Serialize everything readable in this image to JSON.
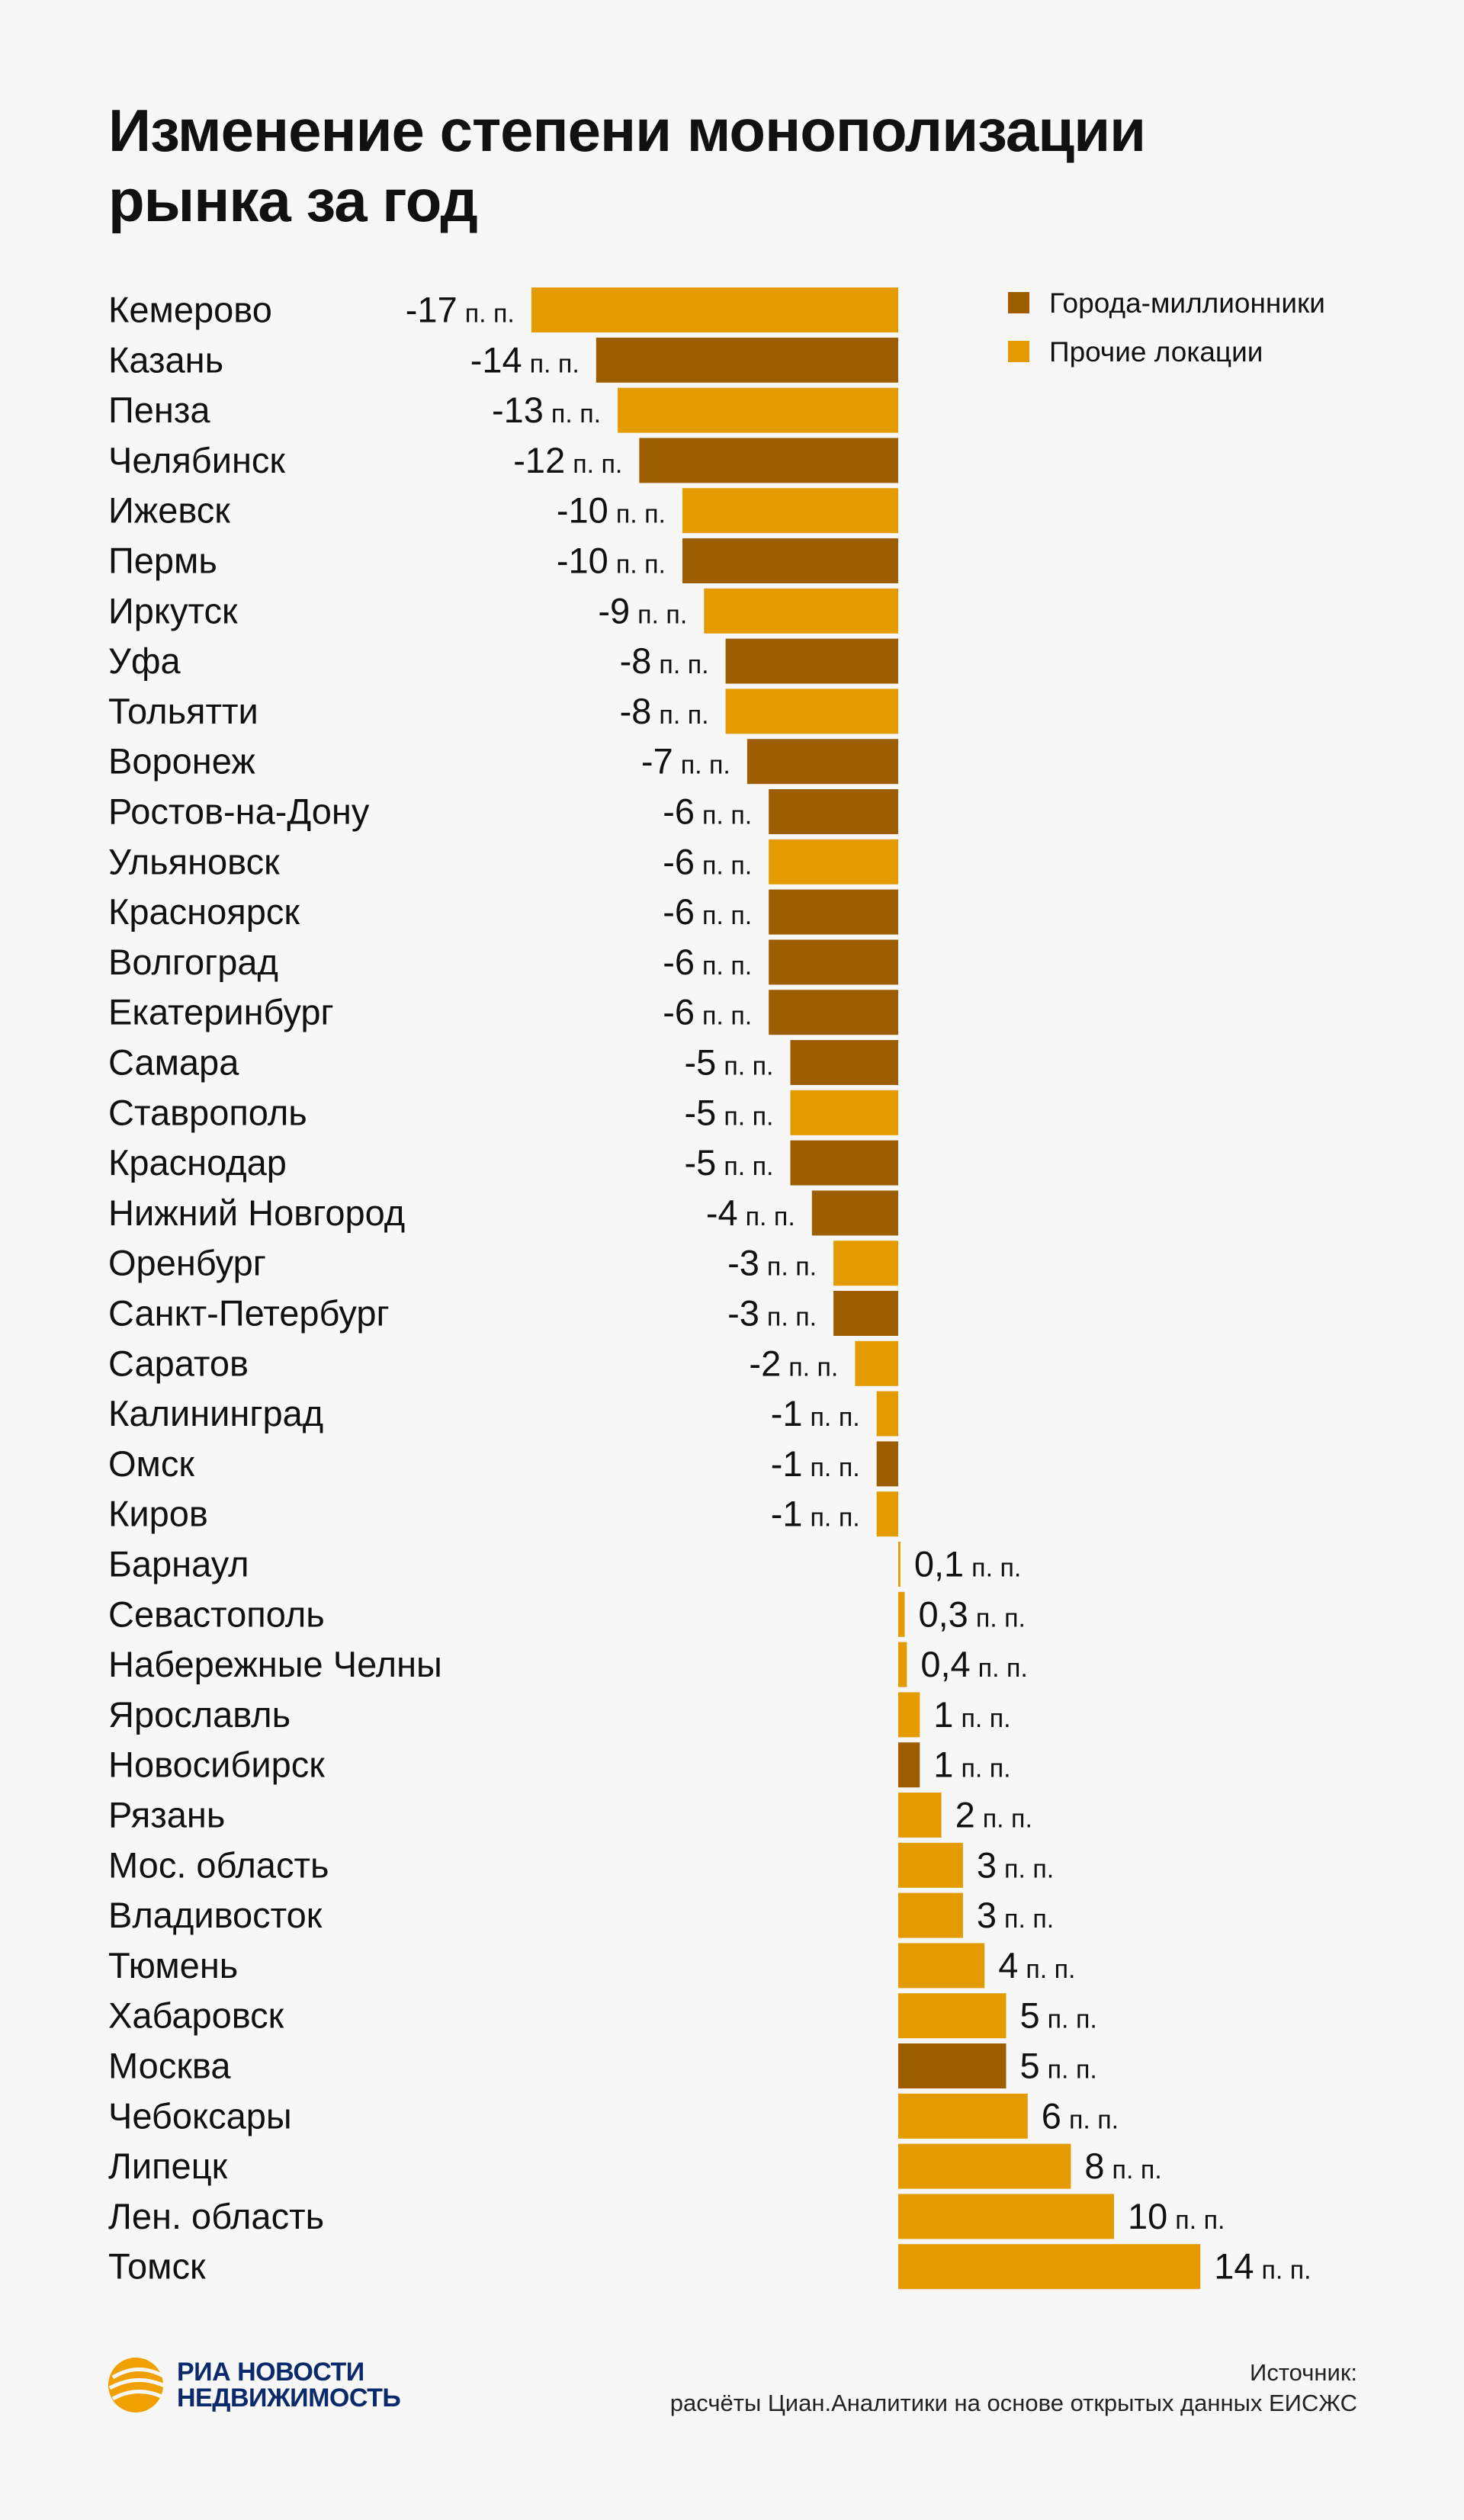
{
  "title": "Изменение степени монополизации рынка за год",
  "legend": [
    {
      "key": "million",
      "label": "Города-миллионники",
      "color": "#9c5e00"
    },
    {
      "key": "other",
      "label": "Прочие локации",
      "color": "#e39b00"
    }
  ],
  "unit": "п. п.",
  "chart_data": {
    "type": "bar",
    "orientation": "horizontal",
    "title": "Изменение степени монополизации рынка за год",
    "unit": "п. п.",
    "legend_position": "top-right",
    "grid": false,
    "xlim": [
      -17,
      14
    ],
    "categories": [
      "Кемерово",
      "Казань",
      "Пенза",
      "Челябинск",
      "Ижевск",
      "Пермь",
      "Иркутск",
      "Уфа",
      "Тольятти",
      "Воронеж",
      "Ростов-на-Дону",
      "Ульяновск",
      "Красноярск",
      "Волгоград",
      "Екатеринбург",
      "Самара",
      "Ставрополь",
      "Краснодар",
      "Нижний Новгород",
      "Оренбург",
      "Санкт-Петербург",
      "Саратов",
      "Калининград",
      "Омск",
      "Киров",
      "Барнаул",
      "Севастополь",
      "Набережные Челны",
      "Ярославль",
      "Новосибирск",
      "Рязань",
      "Мос. область",
      "Владивосток",
      "Тюмень",
      "Хабаровск",
      "Москва",
      "Чебоксары",
      "Липецк",
      "Лен. область",
      "Томск"
    ],
    "values": [
      -17,
      -14,
      -13,
      -12,
      -10,
      -10,
      -9,
      -8,
      -8,
      -7,
      -6,
      -6,
      -6,
      -6,
      -6,
      -5,
      -5,
      -5,
      -4,
      -3,
      -3,
      -2,
      -1,
      -1,
      -1,
      0.1,
      0.3,
      0.4,
      1,
      1,
      2,
      3,
      3,
      4,
      5,
      5,
      6,
      8,
      10,
      14
    ],
    "value_labels": [
      "-17",
      "-14",
      "-13",
      "-12",
      "-10",
      "-10",
      "-9",
      "-8",
      "-8",
      "-7",
      "-6",
      "-6",
      "-6",
      "-6",
      "-6",
      "-5",
      "-5",
      "-5",
      "-4",
      "-3",
      "-3",
      "-2",
      "-1",
      "-1",
      "-1",
      "0,1",
      "0,3",
      "0,4",
      "1",
      "1",
      "2",
      "3",
      "3",
      "4",
      "5",
      "5",
      "6",
      "8",
      "10",
      "14"
    ],
    "groups": [
      "other",
      "million",
      "other",
      "million",
      "other",
      "million",
      "other",
      "million",
      "other",
      "million",
      "million",
      "other",
      "million",
      "million",
      "million",
      "million",
      "other",
      "million",
      "million",
      "other",
      "million",
      "other",
      "other",
      "million",
      "other",
      "other",
      "other",
      "other",
      "other",
      "million",
      "other",
      "other",
      "other",
      "other",
      "other",
      "million",
      "other",
      "other",
      "other",
      "other"
    ]
  },
  "logo": {
    "line1": "РИА НОВОСТИ",
    "line2": "НЕДВИЖИМОСТЬ"
  },
  "source": {
    "line1": "Источник:",
    "line2": "расчёты Циан.Аналитики на основе открытых данных ЕИСЖС"
  }
}
